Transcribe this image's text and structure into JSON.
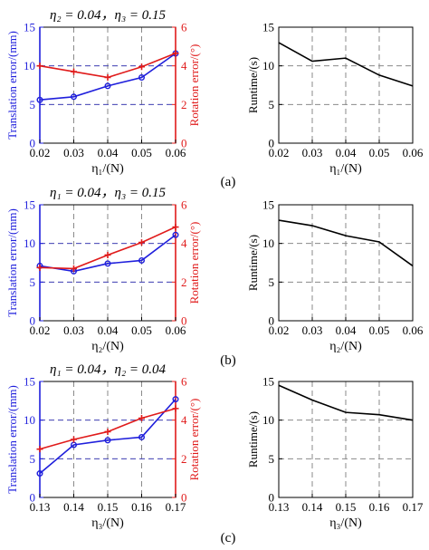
{
  "colors": {
    "translation": "#1f1fdc",
    "rotation": "#e01b1b",
    "runtime": "#000000",
    "axis": "#000000",
    "grid": "#8a8a8a"
  },
  "chart_data": [
    {
      "type": "line",
      "panel": "a-left",
      "title": "η₂ = 0.04，η₃ = 0.15",
      "xlabel": "η₁/(N)",
      "ylabel_left": "Translation error/(mm)",
      "ylabel_right": "Rotation error/(°)",
      "x": [
        0.02,
        0.03,
        0.04,
        0.05,
        0.06
      ],
      "x_ticks": [
        "0.02",
        "0.03",
        "0.04",
        "0.05",
        "0.06"
      ],
      "xlim": [
        0.02,
        0.06
      ],
      "ylim_left": [
        0,
        15
      ],
      "y_ticks_left": [
        "0",
        "5",
        "10",
        "15"
      ],
      "ylim_right": [
        0,
        6
      ],
      "y_ticks_right": [
        "0",
        "2",
        "4",
        "6"
      ],
      "grid": "dashed",
      "series": [
        {
          "axis": "left",
          "marker": "circle",
          "values": [
            5.6,
            6.0,
            7.4,
            8.5,
            11.6
          ]
        },
        {
          "axis": "right",
          "marker": "plus",
          "values": [
            4.0,
            3.7,
            3.4,
            3.95,
            4.65
          ]
        }
      ]
    },
    {
      "type": "line",
      "panel": "a-right",
      "ylabel": "Runtime/(s)",
      "xlabel": "η₁/(N)",
      "x": [
        0.02,
        0.03,
        0.04,
        0.05,
        0.06
      ],
      "x_ticks": [
        "0.02",
        "0.03",
        "0.04",
        "0.05",
        "0.06"
      ],
      "xlim": [
        0.02,
        0.06
      ],
      "ylim": [
        0,
        15
      ],
      "y_ticks": [
        "0",
        "5",
        "10",
        "15"
      ],
      "grid": "dashed",
      "series": [
        {
          "values": [
            13.0,
            10.6,
            11.0,
            8.8,
            7.4
          ]
        }
      ]
    },
    {
      "type": "line",
      "panel": "b-left",
      "title": "η₁ = 0.04，η₃ = 0.15",
      "xlabel": "η₂/(N)",
      "ylabel_left": "Translation error/(mm)",
      "ylabel_right": "Rotation error/(°)",
      "x": [
        0.02,
        0.03,
        0.04,
        0.05,
        0.06
      ],
      "x_ticks": [
        "0.02",
        "0.03",
        "0.04",
        "0.05",
        "0.06"
      ],
      "xlim": [
        0.02,
        0.06
      ],
      "ylim_left": [
        0,
        15
      ],
      "y_ticks_left": [
        "0",
        "5",
        "10",
        "15"
      ],
      "ylim_right": [
        0,
        6
      ],
      "y_ticks_right": [
        "0",
        "2",
        "4",
        "6"
      ],
      "grid": "dashed",
      "series": [
        {
          "axis": "left",
          "marker": "circle",
          "values": [
            7.1,
            6.4,
            7.4,
            7.8,
            11.1
          ]
        },
        {
          "axis": "right",
          "marker": "plus",
          "values": [
            2.75,
            2.7,
            3.4,
            4.05,
            4.85
          ]
        }
      ]
    },
    {
      "type": "line",
      "panel": "b-right",
      "ylabel": "Runtime/(s)",
      "xlabel": "η₂/(N)",
      "x": [
        0.02,
        0.03,
        0.04,
        0.05,
        0.06
      ],
      "x_ticks": [
        "0.02",
        "0.03",
        "0.04",
        "0.05",
        "0.06"
      ],
      "xlim": [
        0.02,
        0.06
      ],
      "ylim": [
        0,
        15
      ],
      "y_ticks": [
        "0",
        "5",
        "10",
        "15"
      ],
      "grid": "dashed",
      "series": [
        {
          "values": [
            13.0,
            12.3,
            11.0,
            10.2,
            7.1
          ]
        }
      ]
    },
    {
      "type": "line",
      "panel": "c-left",
      "title": "η₁ = 0.04，η₂ = 0.04",
      "xlabel": "η₃/(N)",
      "ylabel_left": "Translation error/(mm)",
      "ylabel_right": "Rotation error/(°)",
      "x": [
        0.13,
        0.14,
        0.15,
        0.16,
        0.17
      ],
      "x_ticks": [
        "0.13",
        "0.14",
        "0.15",
        "0.16",
        "0.17"
      ],
      "xlim": [
        0.13,
        0.17
      ],
      "ylim_left": [
        0,
        15
      ],
      "y_ticks_left": [
        "0",
        "5",
        "10",
        "15"
      ],
      "ylim_right": [
        0,
        6
      ],
      "y_ticks_right": [
        "0",
        "2",
        "4",
        "6"
      ],
      "grid": "dashed",
      "series": [
        {
          "axis": "left",
          "marker": "circle",
          "values": [
            3.1,
            6.8,
            7.4,
            7.8,
            12.7
          ]
        },
        {
          "axis": "right",
          "marker": "plus",
          "values": [
            2.5,
            3.0,
            3.4,
            4.1,
            4.6
          ]
        }
      ]
    },
    {
      "type": "line",
      "panel": "c-right",
      "ylabel": "Runtime/(s)",
      "xlabel": "η₃/(N)",
      "x": [
        0.13,
        0.14,
        0.15,
        0.16,
        0.17
      ],
      "x_ticks": [
        "0.13",
        "0.14",
        "0.15",
        "0.16",
        "0.17"
      ],
      "xlim": [
        0.13,
        0.17
      ],
      "ylim": [
        0,
        15
      ],
      "y_ticks": [
        "0",
        "5",
        "10",
        "15"
      ],
      "grid": "dashed",
      "series": [
        {
          "values": [
            14.5,
            12.6,
            11.0,
            10.7,
            10.0
          ]
        }
      ]
    }
  ],
  "captions": [
    "(a)",
    "(b)",
    "(c)"
  ]
}
